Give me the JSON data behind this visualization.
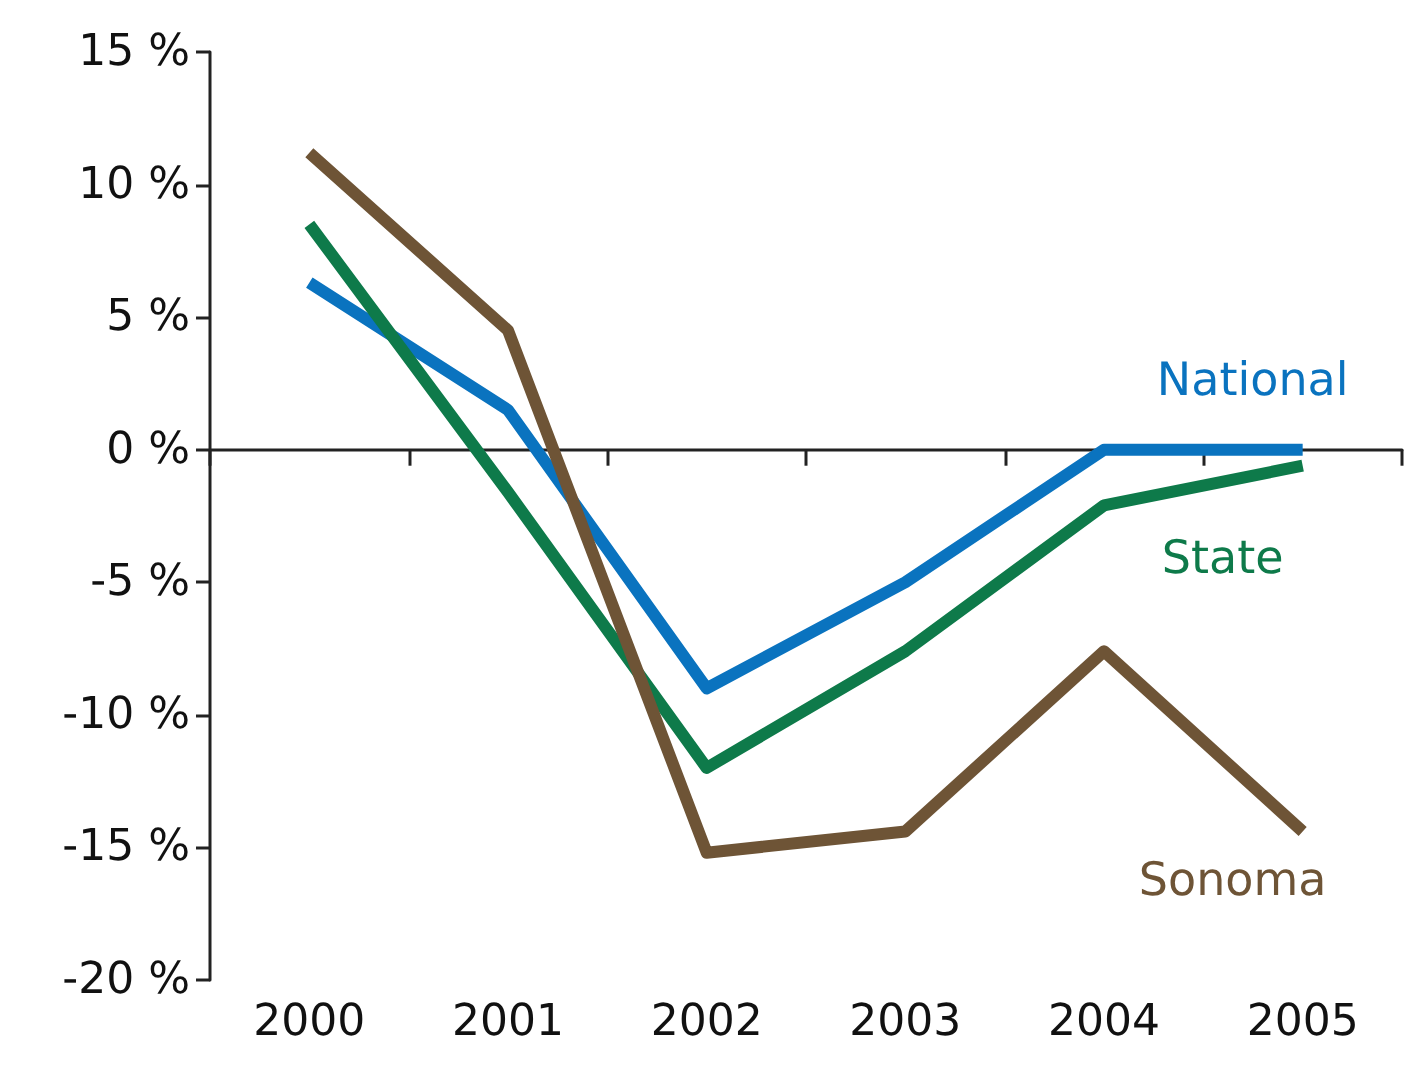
{
  "chart_data": {
    "type": "line",
    "categories": [
      "2000",
      "2001",
      "2002",
      "2003",
      "2004",
      "2005"
    ],
    "series": [
      {
        "name": "National",
        "color": "#0a73bf",
        "values": [
          6.3,
          1.5,
          -9.0,
          -5.0,
          0,
          0
        ]
      },
      {
        "name": "State",
        "color": "#0e7a4a",
        "values": [
          8.5,
          -1.6,
          -12.0,
          -7.6,
          -2.1,
          -0.6
        ]
      },
      {
        "name": "Sonoma",
        "color": "#6e5436",
        "values": [
          11.2,
          4.5,
          -15.2,
          -14.4,
          -7.6,
          -14.4
        ]
      }
    ],
    "ylim": [
      -20,
      15
    ],
    "yticks": [
      {
        "value": -20,
        "label": "-20 %"
      },
      {
        "value": -15,
        "label": "-15 %"
      },
      {
        "value": -10,
        "label": "-10 %"
      },
      {
        "value": -5,
        "label": "-5 %"
      },
      {
        "value": 0,
        "label": "0 %"
      },
      {
        "value": 5,
        "label": "5 %"
      },
      {
        "value": 10,
        "label": "10 %"
      },
      {
        "value": 15,
        "label": "15 %"
      }
    ],
    "legend": false,
    "marker": "none",
    "line_style": "solid"
  }
}
